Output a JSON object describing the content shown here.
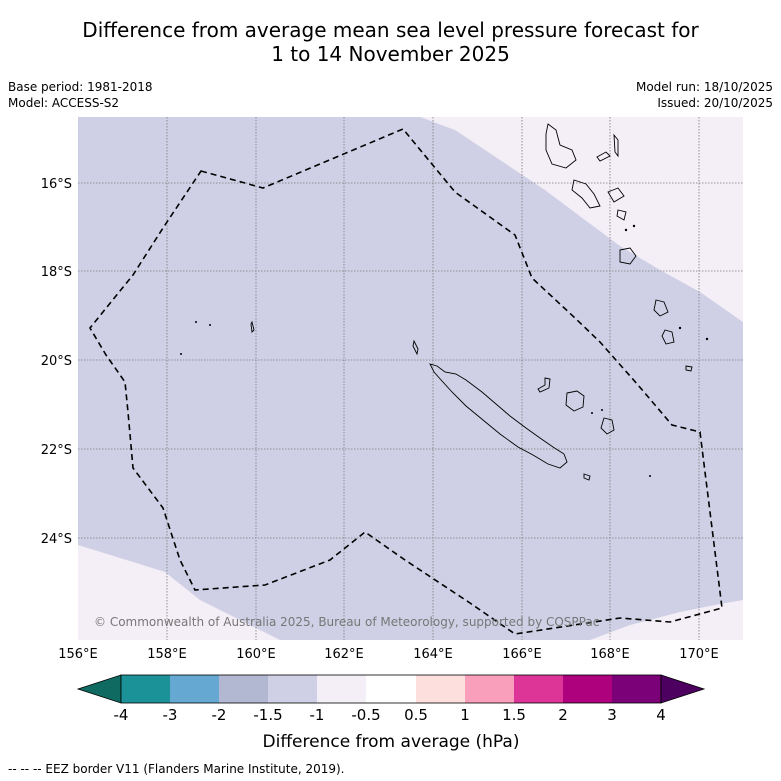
{
  "header": {
    "title_line1": "Difference from average mean sea level pressure forecast for",
    "title_line2": "1 to 14 November 2025",
    "base_period": "Base period: 1981-2018",
    "model": "Model: ACCESS-S2",
    "model_run": "Model run: 18/10/2025",
    "issued": "Issued: 20/10/2025"
  },
  "map": {
    "lon_labels": [
      "156°E",
      "158°E",
      "160°E",
      "162°E",
      "164°E",
      "166°E",
      "168°E",
      "170°E"
    ],
    "lat_labels": [
      "16°S",
      "18°S",
      "20°S",
      "22°S",
      "24°S"
    ],
    "copyright": "© Commonwealth of Australia 2025, Bureau of Meteorology, supported by COSPPac",
    "fill_colors": {
      "minus_1_5_to_minus_1": "#cfd0e5",
      "minus_1_to_minus_0_5": "#f4eef6"
    }
  },
  "colorbar": {
    "title": "Difference from average (hPa)",
    "tick_labels": [
      "-4",
      "-3",
      "-2",
      "-1.5",
      "-1",
      "-0.5",
      "0.5",
      "1",
      "1.5",
      "2",
      "3",
      "4"
    ],
    "colors": [
      "#0f6b62",
      "#1b9198",
      "#65a8d1",
      "#b3b8d2",
      "#cfd0e5",
      "#f4eef6",
      "#ffffff",
      "#fde0de",
      "#f99fbb",
      "#dd3497",
      "#ae017e",
      "#7a0177",
      "#4d0060"
    ]
  },
  "footer": {
    "legend": "--  --  -- EEZ border V11 (Flanders Marine Institute, 2019)."
  }
}
